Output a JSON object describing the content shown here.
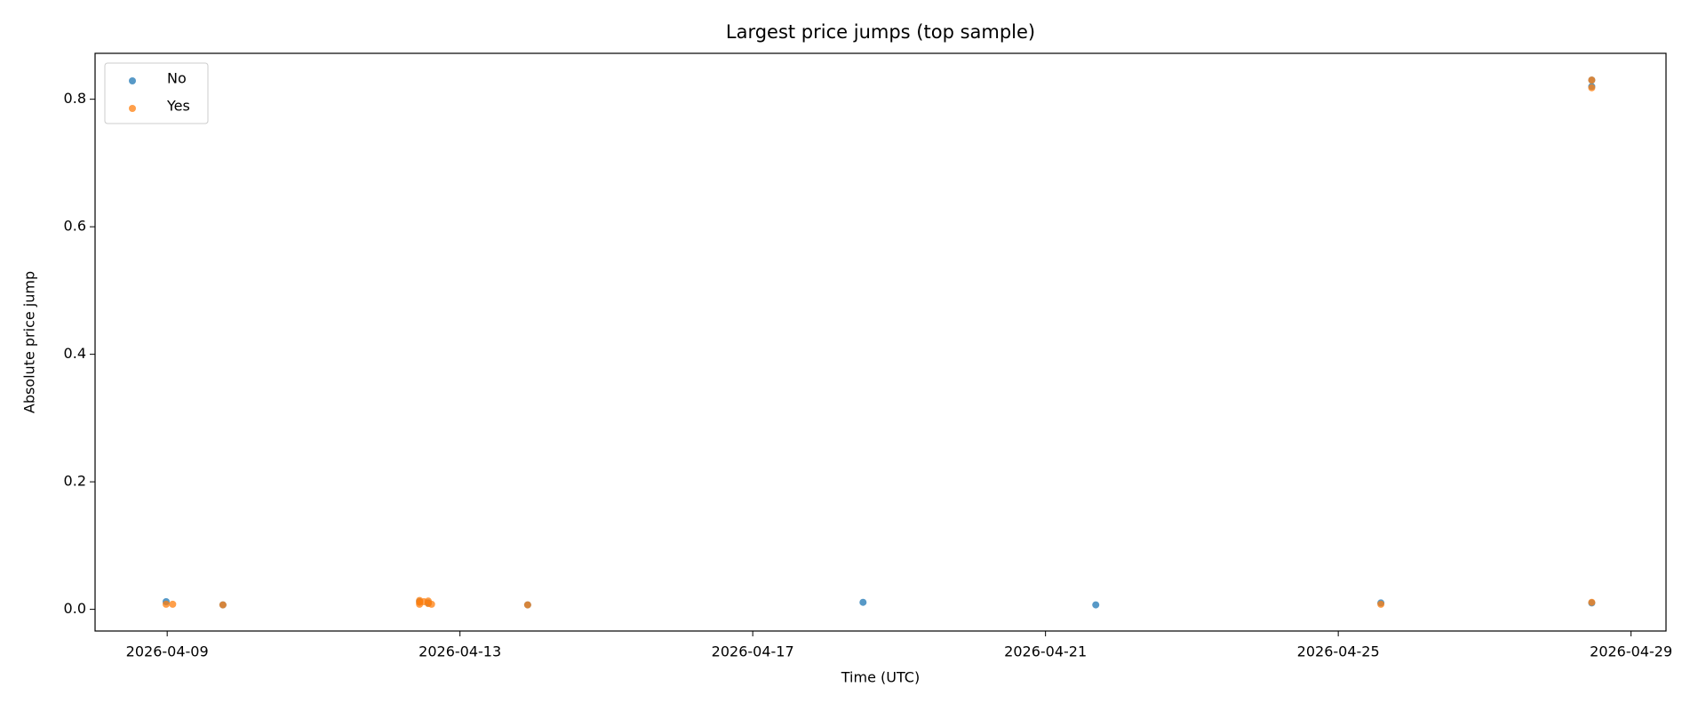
{
  "chart_data": {
    "type": "scatter",
    "title": "Largest price jumps (top sample)",
    "x_label": "Time (UTC)",
    "y_label": "Absolute price jump",
    "xlim": [
      "2026-04-08T00:21",
      "2026-04-29T11:28"
    ],
    "xticks": [
      "2026-04-09",
      "2026-04-13",
      "2026-04-17",
      "2026-04-21",
      "2026-04-25",
      "2026-04-29"
    ],
    "ylim": [
      -0.034,
      0.872
    ],
    "yticks": [
      {
        "value": 0,
        "label": "0.0"
      },
      0.2,
      0.4,
      0.6,
      0.8
    ],
    "grid": false,
    "legend": "upper left",
    "series": [
      {
        "name": "No",
        "color": "#1f77b4",
        "x": [
          "2026-04-08T23:39",
          "2026-04-09T18:16",
          "2026-04-12T10:45",
          "2026-04-12T13:36",
          "2026-04-13T22:12",
          "2026-04-18T12:10",
          "2026-04-21T16:29",
          "2026-04-25T13:58",
          "2026-04-28T11:07",
          "2026-04-28T11:07",
          "2026-04-28T11:07"
        ],
        "values": [
          0.012,
          0.007,
          0.012,
          0.01,
          0.007,
          0.011,
          0.007,
          0.01,
          0.82,
          0.83,
          0.01
        ]
      },
      {
        "name": "Yes",
        "color": "#ff7f0e",
        "x": [
          "2026-04-08T23:39",
          "2026-04-09T01:48",
          "2026-04-09T18:16",
          "2026-04-12T10:45",
          "2026-04-12T10:45",
          "2026-04-12T10:45",
          "2026-04-12T12:10",
          "2026-04-12T13:36",
          "2026-04-12T13:36",
          "2026-04-12T14:41",
          "2026-04-13T22:12",
          "2026-04-25T13:58",
          "2026-04-28T11:07",
          "2026-04-28T11:07",
          "2026-04-28T11:07"
        ],
        "values": [
          0.008,
          0.008,
          0.007,
          0.014,
          0.011,
          0.008,
          0.012,
          0.013,
          0.009,
          0.008,
          0.007,
          0.008,
          0.83,
          0.818,
          0.011
        ]
      }
    ]
  }
}
